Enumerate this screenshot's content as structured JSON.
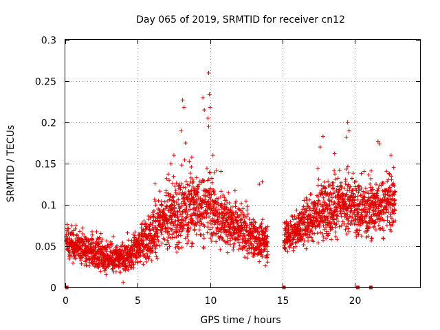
{
  "chart_data": {
    "type": "scatter",
    "title": "Day 065 of 2019, SRMTID for receiver cn12",
    "xlabel": "GPS time / hours",
    "ylabel": "SRMTID / TECUs",
    "xlim": [
      0,
      24.5
    ],
    "ylim": [
      0,
      0.3
    ],
    "xticks": [
      0,
      5,
      10,
      15,
      20
    ],
    "xtick_labels": [
      "0",
      "5",
      "10",
      "15",
      "20"
    ],
    "yticks": [
      0,
      0.05,
      0.1,
      0.15,
      0.2,
      0.25,
      0.3
    ],
    "ytick_labels": [
      "0",
      "0.05",
      "0.1",
      "0.15",
      "0.2",
      "0.25",
      "0.3"
    ],
    "grid": true,
    "marker": "+",
    "color": "#e00000",
    "gap_markers_x": [
      0.1,
      15.1,
      20.2,
      21.1
    ],
    "series": [
      {
        "name": "SRMTID",
        "trend": [
          [
            0,
            0.052
          ],
          [
            1,
            0.048
          ],
          [
            2,
            0.042
          ],
          [
            3,
            0.036
          ],
          [
            4,
            0.035
          ],
          [
            5,
            0.048
          ],
          [
            6,
            0.065
          ],
          [
            7,
            0.085
          ],
          [
            8,
            0.092
          ],
          [
            9,
            0.095
          ],
          [
            10,
            0.098
          ],
          [
            11,
            0.08
          ],
          [
            12,
            0.07
          ],
          [
            13,
            0.06
          ],
          [
            14,
            0.052
          ],
          [
            15.1,
            0.062
          ],
          [
            16,
            0.07
          ],
          [
            17,
            0.085
          ],
          [
            18,
            0.095
          ],
          [
            19,
            0.1
          ],
          [
            20,
            0.1
          ],
          [
            21,
            0.09
          ],
          [
            22,
            0.1
          ],
          [
            22.8,
            0.105
          ]
        ],
        "spread": [
          [
            0,
            0.018
          ],
          [
            4,
            0.015
          ],
          [
            6,
            0.025
          ],
          [
            8,
            0.04
          ],
          [
            10,
            0.035
          ],
          [
            12,
            0.025
          ],
          [
            14,
            0.018
          ],
          [
            16,
            0.02
          ],
          [
            18,
            0.03
          ],
          [
            20,
            0.03
          ],
          [
            22.8,
            0.03
          ]
        ],
        "sample_interval_hours": 0.01,
        "outliers": [
          [
            8.1,
            0.227
          ],
          [
            8.2,
            0.218
          ],
          [
            8.0,
            0.19
          ],
          [
            8.3,
            0.175
          ],
          [
            9.5,
            0.23
          ],
          [
            9.6,
            0.215
          ],
          [
            9.9,
            0.26
          ],
          [
            9.95,
            0.234
          ],
          [
            10.0,
            0.218
          ],
          [
            9.85,
            0.205
          ],
          [
            9.9,
            0.195
          ],
          [
            10.2,
            0.16
          ],
          [
            19.5,
            0.2
          ],
          [
            19.6,
            0.19
          ],
          [
            19.4,
            0.182
          ],
          [
            17.8,
            0.183
          ],
          [
            17.6,
            0.17
          ],
          [
            21.6,
            0.177
          ],
          [
            21.7,
            0.174
          ],
          [
            7.5,
            0.16
          ],
          [
            22.5,
            0.16
          ],
          [
            7.3,
            0.15
          ],
          [
            13.6,
            0.128
          ],
          [
            13.4,
            0.125
          ],
          [
            4.0,
            0.006
          ]
        ]
      }
    ]
  }
}
